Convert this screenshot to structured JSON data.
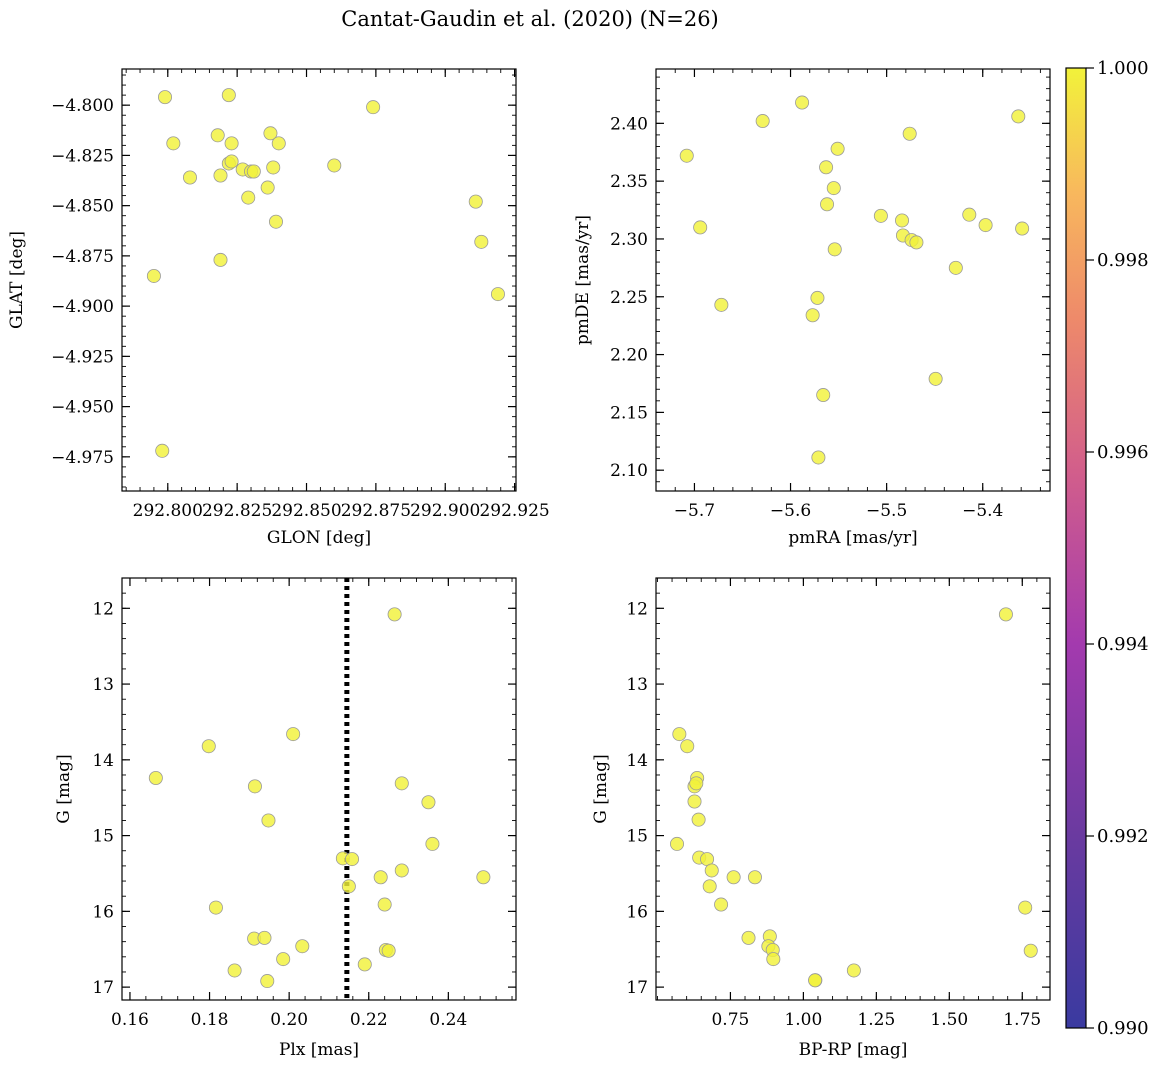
{
  "figure": {
    "title": "Cantat-Gaudin et al. (2020) (N=26)"
  },
  "style": {
    "point_color": "#F2F23A",
    "colormap": "plasma",
    "colormap_stops": [
      "#3A3AA0",
      "#6A3AA0",
      "#A33AAE",
      "#D25E8B",
      "#EE8A6A",
      "#F8B85D",
      "#F2F23A"
    ]
  },
  "colorbar": {
    "min": 0.99,
    "max": 1.0,
    "ticks": [
      0.99,
      0.992,
      0.994,
      0.996,
      0.998,
      1.0
    ],
    "tick_labels": [
      "0.990",
      "0.992",
      "0.994",
      "0.996",
      "0.998",
      "1.000"
    ]
  },
  "chart_data": [
    {
      "type": "scatter",
      "id": "glon-glat",
      "xlabel": "GLON [deg]",
      "ylabel": "GLAT [deg]",
      "xlim": [
        292.7835,
        292.9255
      ],
      "ylim": [
        -4.992,
        -4.782
      ],
      "xticks": [
        292.8,
        292.825,
        292.85,
        292.875,
        292.9,
        292.925
      ],
      "xtick_labels": [
        "292.800",
        "292.825",
        "292.850",
        "292.875",
        "292.900",
        "292.925"
      ],
      "yticks": [
        -4.8,
        -4.825,
        -4.85,
        -4.875,
        -4.9,
        -4.925,
        -4.95,
        -4.975
      ],
      "ytick_labels": [
        "−4.800",
        "−4.825",
        "−4.850",
        "−4.875",
        "−4.900",
        "−4.925",
        "−4.950",
        "−4.975"
      ],
      "points": [
        [
          292.799,
          -4.796
        ],
        [
          292.818,
          -4.815
        ],
        [
          292.822,
          -4.795
        ],
        [
          292.874,
          -4.801
        ],
        [
          292.802,
          -4.819
        ],
        [
          292.823,
          -4.819
        ],
        [
          292.837,
          -4.814
        ],
        [
          292.84,
          -4.819
        ],
        [
          292.808,
          -4.836
        ],
        [
          292.819,
          -4.835
        ],
        [
          292.822,
          -4.829
        ],
        [
          292.823,
          -4.828
        ],
        [
          292.827,
          -4.832
        ],
        [
          292.83,
          -4.833
        ],
        [
          292.831,
          -4.833
        ],
        [
          292.836,
          -4.841
        ],
        [
          292.838,
          -4.831
        ],
        [
          292.86,
          -4.83
        ],
        [
          292.829,
          -4.846
        ],
        [
          292.839,
          -4.858
        ],
        [
          292.819,
          -4.877
        ],
        [
          292.911,
          -4.848
        ],
        [
          292.913,
          -4.868
        ],
        [
          292.795,
          -4.885
        ],
        [
          292.919,
          -4.894
        ],
        [
          292.798,
          -4.972
        ]
      ]
    },
    {
      "type": "scatter",
      "id": "pmra-pmde",
      "xlabel": "pmRA [mas/yr]",
      "ylabel": "pmDE [mas/yr]",
      "xlim": [
        -5.74,
        -5.33
      ],
      "ylim": [
        2.082,
        2.447
      ],
      "xticks": [
        -5.7,
        -5.6,
        -5.5,
        -5.4
      ],
      "xtick_labels": [
        "−5.7",
        "−5.6",
        "−5.5",
        "−5.4"
      ],
      "yticks": [
        2.1,
        2.15,
        2.2,
        2.25,
        2.3,
        2.35,
        2.4
      ],
      "ytick_labels": [
        "2.10",
        "2.15",
        "2.20",
        "2.25",
        "2.30",
        "2.35",
        "2.40"
      ],
      "points": [
        [
          -5.629,
          2.402
        ],
        [
          -5.588,
          2.418
        ],
        [
          -5.363,
          2.406
        ],
        [
          -5.476,
          2.391
        ],
        [
          -5.708,
          2.372
        ],
        [
          -5.551,
          2.378
        ],
        [
          -5.563,
          2.362
        ],
        [
          -5.555,
          2.344
        ],
        [
          -5.562,
          2.33
        ],
        [
          -5.506,
          2.32
        ],
        [
          -5.484,
          2.316
        ],
        [
          -5.414,
          2.321
        ],
        [
          -5.397,
          2.312
        ],
        [
          -5.359,
          2.309
        ],
        [
          -5.694,
          2.31
        ],
        [
          -5.483,
          2.303
        ],
        [
          -5.474,
          2.299
        ],
        [
          -5.469,
          2.297
        ],
        [
          -5.554,
          2.291
        ],
        [
          -5.428,
          2.275
        ],
        [
          -5.672,
          2.243
        ],
        [
          -5.572,
          2.249
        ],
        [
          -5.577,
          2.234
        ],
        [
          -5.449,
          2.179
        ],
        [
          -5.566,
          2.165
        ],
        [
          -5.571,
          2.111
        ]
      ]
    },
    {
      "type": "scatter",
      "id": "plx-g",
      "xlabel": "Plx [mas]",
      "ylabel": "G [mag]",
      "xlim": [
        0.158,
        0.257
      ],
      "ylim": [
        17.17,
        11.6
      ],
      "y_inverted": true,
      "xticks": [
        0.16,
        0.18,
        0.2,
        0.22,
        0.24
      ],
      "xtick_labels": [
        "0.16",
        "0.18",
        "0.20",
        "0.22",
        "0.24"
      ],
      "yticks": [
        12,
        13,
        14,
        15,
        16,
        17
      ],
      "ytick_labels": [
        "12",
        "13",
        "14",
        "15",
        "16",
        "17"
      ],
      "reference_line_x": 0.2145,
      "points": [
        [
          0.2265,
          12.08
        ],
        [
          0.201,
          13.66
        ],
        [
          0.1798,
          13.82
        ],
        [
          0.1665,
          14.24
        ],
        [
          0.1914,
          14.35
        ],
        [
          0.2283,
          14.31
        ],
        [
          0.235,
          14.56
        ],
        [
          0.1948,
          14.8
        ],
        [
          0.236,
          15.11
        ],
        [
          0.2135,
          15.3
        ],
        [
          0.2158,
          15.31
        ],
        [
          0.2283,
          15.46
        ],
        [
          0.2488,
          15.55
        ],
        [
          0.223,
          15.55
        ],
        [
          0.215,
          15.67
        ],
        [
          0.224,
          15.91
        ],
        [
          0.1816,
          15.95
        ],
        [
          0.1912,
          16.36
        ],
        [
          0.1938,
          16.35
        ],
        [
          0.2033,
          16.46
        ],
        [
          0.2243,
          16.51
        ],
        [
          0.225,
          16.52
        ],
        [
          0.1985,
          16.63
        ],
        [
          0.219,
          16.7
        ],
        [
          0.1863,
          16.78
        ],
        [
          0.1945,
          16.92
        ]
      ]
    },
    {
      "type": "scatter",
      "id": "bprp-g",
      "xlabel": "BP-RP [mag]",
      "ylabel": "G [mag]",
      "xlim": [
        0.495,
        1.845
      ],
      "ylim": [
        17.17,
        11.6
      ],
      "y_inverted": true,
      "xticks": [
        0.75,
        1.0,
        1.25,
        1.5,
        1.75
      ],
      "xtick_labels": [
        "0.75",
        "1.00",
        "1.25",
        "1.50",
        "1.75"
      ],
      "yticks": [
        12,
        13,
        14,
        15,
        16,
        17
      ],
      "ytick_labels": [
        "12",
        "13",
        "14",
        "15",
        "16",
        "17"
      ],
      "points": [
        [
          1.694,
          12.08
        ],
        [
          0.575,
          13.66
        ],
        [
          0.602,
          13.82
        ],
        [
          0.636,
          14.24
        ],
        [
          0.627,
          14.35
        ],
        [
          0.633,
          14.31
        ],
        [
          0.627,
          14.55
        ],
        [
          0.641,
          14.79
        ],
        [
          0.567,
          15.11
        ],
        [
          0.643,
          15.29
        ],
        [
          0.67,
          15.31
        ],
        [
          0.686,
          15.46
        ],
        [
          0.761,
          15.55
        ],
        [
          0.834,
          15.55
        ],
        [
          0.679,
          15.67
        ],
        [
          0.718,
          15.91
        ],
        [
          1.76,
          15.95
        ],
        [
          0.812,
          16.35
        ],
        [
          0.885,
          16.33
        ],
        [
          0.88,
          16.46
        ],
        [
          0.895,
          16.51
        ],
        [
          1.779,
          16.52
        ],
        [
          0.897,
          16.63
        ],
        [
          1.041,
          16.91
        ],
        [
          1.173,
          16.78
        ],
        [
          1.04,
          16.91
        ]
      ]
    }
  ]
}
